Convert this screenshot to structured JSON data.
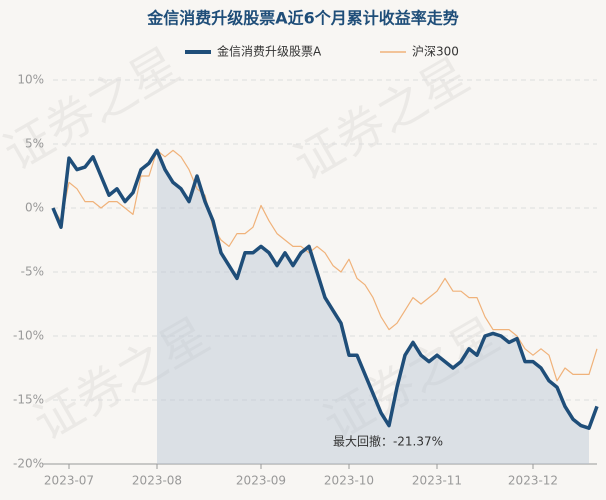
{
  "chart_data": {
    "type": "line",
    "title": "金信消费升级股票A近6个月累计收益率走势",
    "watermark": "证券之星",
    "annotation": "最大回撤：-21.37%",
    "categories": [
      null,
      null,
      "2023-07",
      null,
      null,
      null,
      null,
      null,
      null,
      null,
      null,
      null,
      null,
      "2023-08",
      null,
      null,
      null,
      null,
      null,
      null,
      null,
      null,
      null,
      null,
      null,
      null,
      "2023-09",
      null,
      null,
      null,
      null,
      null,
      null,
      null,
      null,
      null,
      null,
      "2023-10",
      null,
      null,
      null,
      null,
      null,
      null,
      null,
      null,
      null,
      null,
      "2023-11",
      null,
      null,
      null,
      null,
      null,
      null,
      null,
      null,
      null,
      null,
      null,
      "2023-12",
      null,
      null,
      null,
      null,
      null,
      null,
      null,
      null
    ],
    "series": [
      {
        "name": "金信消费升级股票A",
        "color": "#1f4e79",
        "width": 3.5,
        "values": [
          0,
          -1.5,
          3.9,
          3,
          3.2,
          4,
          2.5,
          1,
          1.5,
          0.5,
          1.2,
          3,
          3.5,
          4.5,
          3,
          2,
          1.5,
          0.5,
          2.5,
          0.5,
          -1,
          -3.5,
          -4.5,
          -5.5,
          -3.5,
          -3.5,
          -3,
          -3.5,
          -4.5,
          -3.5,
          -4.5,
          -3.5,
          -3,
          -5,
          -7,
          -8,
          -9,
          -11.5,
          -11.5,
          -13,
          -14.5,
          -16,
          -17,
          -14,
          -11.5,
          -10.5,
          -11.5,
          -12,
          -11.5,
          -12,
          -12.5,
          -12,
          -11,
          -11.5,
          -10,
          -9.8,
          -10,
          -10.5,
          -10.2,
          -12,
          -12,
          -12.5,
          -13.5,
          -14,
          -15.5,
          -16.5,
          -17,
          -17.2,
          -15.5
        ]
      },
      {
        "name": "沪深300",
        "color": "#f0b27a",
        "width": 1.2,
        "values": [
          0,
          -1,
          2,
          1.5,
          0.5,
          0.5,
          0,
          0.5,
          0.5,
          0,
          -0.5,
          2.5,
          2.5,
          4.5,
          4,
          4.5,
          4,
          3,
          1.5,
          1,
          -1.5,
          -2.5,
          -3,
          -2,
          -2,
          -1.5,
          0.2,
          -1,
          -2,
          -2.5,
          -3,
          -3,
          -3.5,
          -3,
          -3.5,
          -4.5,
          -5,
          -4,
          -5.5,
          -6,
          -7,
          -8.5,
          -9.5,
          -9,
          -8,
          -7,
          -7.5,
          -7,
          -6.5,
          -5.5,
          -6.5,
          -6.5,
          -7,
          -7,
          -8.5,
          -9.5,
          -9.5,
          -9.5,
          -10,
          -11,
          -11.5,
          -11,
          -11.5,
          -13.5,
          -12.5,
          -13,
          -13,
          -13,
          -11
        ]
      }
    ],
    "ylim": [
      -20,
      10
    ],
    "yticks": [
      {
        "value": -20,
        "label": "-20%"
      },
      {
        "value": -15,
        "label": "-15%"
      },
      {
        "value": -10,
        "label": "-10%"
      },
      {
        "value": -5,
        "label": "-5%"
      },
      {
        "value": 0,
        "label": "0%"
      },
      {
        "value": 5,
        "label": "5%"
      },
      {
        "value": 10,
        "label": "10%"
      }
    ],
    "grid": true
  }
}
